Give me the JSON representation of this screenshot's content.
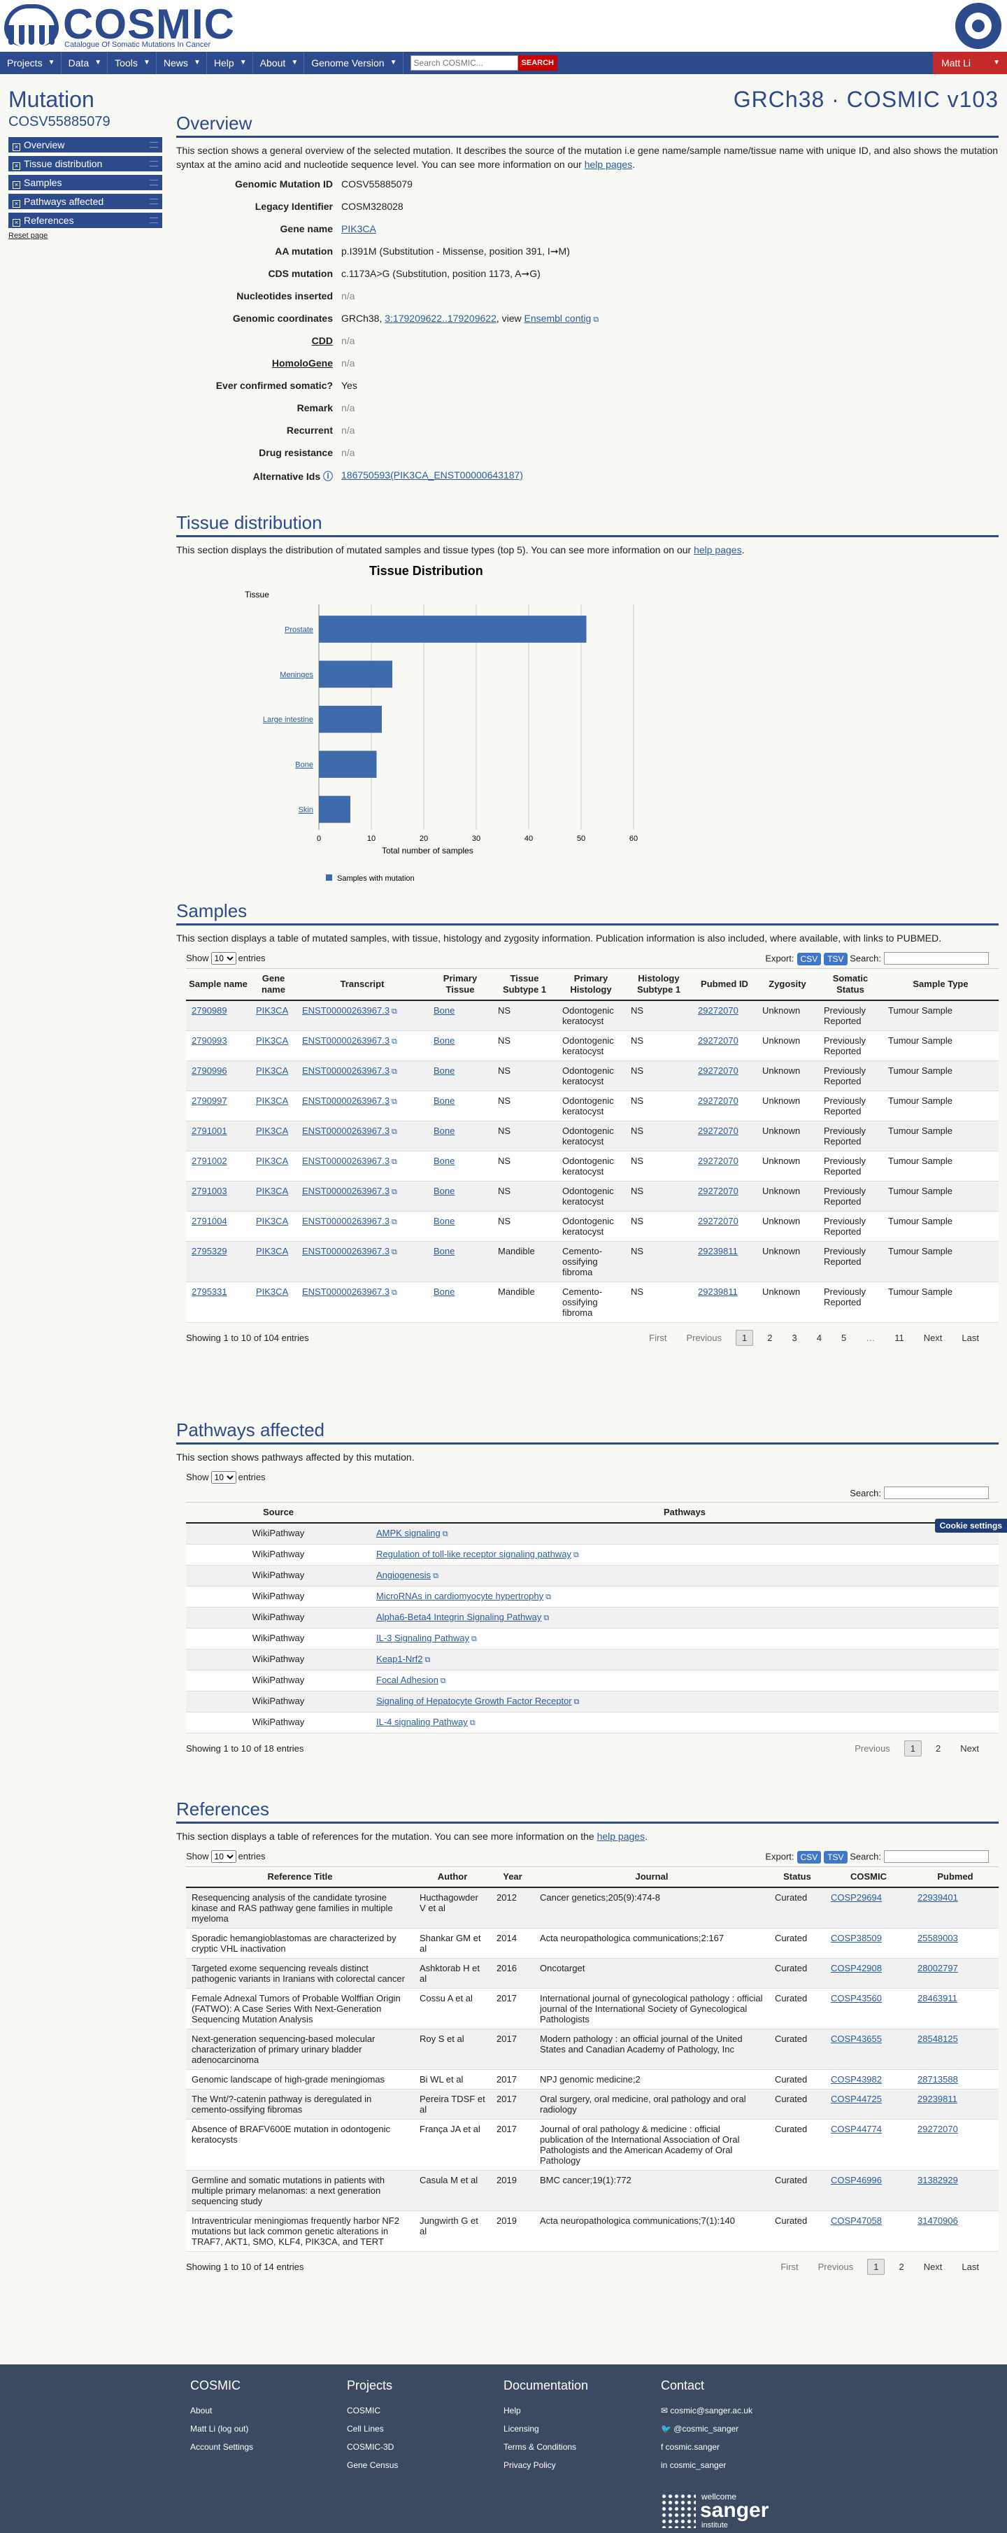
{
  "header": {
    "logo_text": "COSMIC",
    "logo_sub": "Catalogue Of Somatic Mutations In Cancer"
  },
  "nav": {
    "items": [
      "Projects",
      "Data",
      "Tools",
      "News",
      "Help",
      "About",
      "Genome Version"
    ],
    "search_placeholder": "Search COSMIC...",
    "search_button": "SEARCH",
    "user": "Matt Li"
  },
  "left": {
    "heading": "Mutation",
    "id": "COSV55885079",
    "buttons": [
      "Overview",
      "Tissue distribution",
      "Samples",
      "Pathways affected",
      "References"
    ],
    "reset": "Reset page"
  },
  "build_title": "GRCh38 · COSMIC v103",
  "overview": {
    "title": "Overview",
    "intro_prefix": "This section shows a general overview of the selected mutation. It describes the source of the mutation i.e gene name/sample name/tissue name with unique ID, and also shows the mutation syntax at the amino acid and nucleotide sequence level. You can see more information on our ",
    "help_link": "help pages",
    "rows": {
      "genomic_mutation_id_label": "Genomic Mutation ID",
      "genomic_mutation_id": "COSV55885079",
      "legacy_label": "Legacy Identifier",
      "legacy": "COSM328028",
      "gene_label": "Gene name",
      "gene": "PIK3CA",
      "aa_label": "AA mutation",
      "aa": "p.I391M (Substitution - Missense, position 391, I➞M)",
      "cds_label": "CDS mutation",
      "cds": "c.1173A>G (Substitution, position 1173, A➞G)",
      "nucins_label": "Nucleotides inserted",
      "nucins": "n/a",
      "coords_label": "Genomic coordinates",
      "coords_prefix": "GRCh38, ",
      "coords_link": "3:179209622..179209622",
      "coords_mid": ", view ",
      "coords_ensembl": "Ensembl contig",
      "cdd_label": "CDD",
      "cdd": "n/a",
      "homologene_label": "HomoloGene",
      "homologene": "n/a",
      "somatic_label": "Ever confirmed somatic?",
      "somatic": "Yes",
      "remark_label": "Remark",
      "remark": "n/a",
      "recurrent_label": "Recurrent",
      "recurrent": "n/a",
      "drug_label": "Drug resistance",
      "drug": "n/a",
      "altids_label": "Alternative Ids",
      "altids": "186750593(PIK3CA_ENST00000643187)"
    }
  },
  "tissue": {
    "title": "Tissue distribution",
    "intro_prefix": "This section displays the distribution of mutated samples and tissue types (top 5). You can see more information on our ",
    "help_link": "help pages"
  },
  "chart_data": {
    "type": "bar",
    "orientation": "horizontal",
    "title": "Tissue Distribution",
    "ylabel": "Tissue",
    "xlabel": "Total number of samples",
    "categories": [
      "Prostate",
      "Meninges",
      "Large intestine",
      "Bone",
      "Skin"
    ],
    "series": [
      {
        "name": "Samples with mutation",
        "values": [
          51,
          14,
          12,
          11,
          6
        ]
      }
    ],
    "xlim": [
      0,
      60
    ],
    "xticks": [
      0,
      10,
      20,
      30,
      40,
      50,
      60
    ],
    "grid": true,
    "legend": "bottom-left",
    "color": "#3f6aab"
  },
  "samples": {
    "title": "Samples",
    "intro": "This section displays a table of mutated samples, with tissue, histology and zygosity information. Publication information is also included, where available, with links to PUBMED.",
    "show": "Show",
    "entries": "entries",
    "page_size": "10",
    "export": "Export:",
    "csv": "CSV",
    "tsv": "TSV",
    "search": "Search:",
    "columns": [
      "Sample name",
      "Gene name",
      "Transcript",
      "Primary Tissue",
      "Tissue Subtype 1",
      "Primary Histology",
      "Histology Subtype 1",
      "Pubmed ID",
      "Zygosity",
      "Somatic Status",
      "Sample Type"
    ],
    "rows": [
      [
        "2790989",
        "PIK3CA",
        "ENST00000263967.3",
        "Bone",
        "NS",
        "Odontogenic keratocyst",
        "NS",
        "29272070",
        "Unknown",
        "Previously Reported",
        "Tumour Sample"
      ],
      [
        "2790993",
        "PIK3CA",
        "ENST00000263967.3",
        "Bone",
        "NS",
        "Odontogenic keratocyst",
        "NS",
        "29272070",
        "Unknown",
        "Previously Reported",
        "Tumour Sample"
      ],
      [
        "2790996",
        "PIK3CA",
        "ENST00000263967.3",
        "Bone",
        "NS",
        "Odontogenic keratocyst",
        "NS",
        "29272070",
        "Unknown",
        "Previously Reported",
        "Tumour Sample"
      ],
      [
        "2790997",
        "PIK3CA",
        "ENST00000263967.3",
        "Bone",
        "NS",
        "Odontogenic keratocyst",
        "NS",
        "29272070",
        "Unknown",
        "Previously Reported",
        "Tumour Sample"
      ],
      [
        "2791001",
        "PIK3CA",
        "ENST00000263967.3",
        "Bone",
        "NS",
        "Odontogenic keratocyst",
        "NS",
        "29272070",
        "Unknown",
        "Previously Reported",
        "Tumour Sample"
      ],
      [
        "2791002",
        "PIK3CA",
        "ENST00000263967.3",
        "Bone",
        "NS",
        "Odontogenic keratocyst",
        "NS",
        "29272070",
        "Unknown",
        "Previously Reported",
        "Tumour Sample"
      ],
      [
        "2791003",
        "PIK3CA",
        "ENST00000263967.3",
        "Bone",
        "NS",
        "Odontogenic keratocyst",
        "NS",
        "29272070",
        "Unknown",
        "Previously Reported",
        "Tumour Sample"
      ],
      [
        "2791004",
        "PIK3CA",
        "ENST00000263967.3",
        "Bone",
        "NS",
        "Odontogenic keratocyst",
        "NS",
        "29272070",
        "Unknown",
        "Previously Reported",
        "Tumour Sample"
      ],
      [
        "2795329",
        "PIK3CA",
        "ENST00000263967.3",
        "Bone",
        "Mandible",
        "Cemento-ossifying fibroma",
        "NS",
        "29239811",
        "Unknown",
        "Previously Reported",
        "Tumour Sample"
      ],
      [
        "2795331",
        "PIK3CA",
        "ENST00000263967.3",
        "Bone",
        "Mandible",
        "Cemento-ossifying fibroma",
        "NS",
        "29239811",
        "Unknown",
        "Previously Reported",
        "Tumour Sample"
      ]
    ],
    "info": "Showing 1 to 10 of 104 entries",
    "pager": [
      "First",
      "Previous",
      "1",
      "2",
      "3",
      "4",
      "5",
      "…",
      "11",
      "Next",
      "Last"
    ]
  },
  "pathways": {
    "title": "Pathways affected",
    "intro": "This section shows pathways affected by this mutation.",
    "show": "Show",
    "entries": "entries",
    "page_size": "10",
    "search": "Search:",
    "columns": [
      "Source",
      "Pathways"
    ],
    "rows": [
      [
        "WikiPathway",
        "AMPK signaling"
      ],
      [
        "WikiPathway",
        "Regulation of toll-like receptor signaling pathway"
      ],
      [
        "WikiPathway",
        "Angiogenesis"
      ],
      [
        "WikiPathway",
        "MicroRNAs in cardiomyocyte hypertrophy"
      ],
      [
        "WikiPathway",
        "Alpha6-Beta4 Integrin Signaling Pathway"
      ],
      [
        "WikiPathway",
        "IL-3 Signaling Pathway"
      ],
      [
        "WikiPathway",
        "Keap1-Nrf2"
      ],
      [
        "WikiPathway",
        "Focal Adhesion"
      ],
      [
        "WikiPathway",
        "Signaling of Hepatocyte Growth Factor Receptor"
      ],
      [
        "WikiPathway",
        "IL-4 signaling Pathway"
      ]
    ],
    "info": "Showing 1 to 10 of 18 entries",
    "pager": [
      "Previous",
      "1",
      "2",
      "Next"
    ],
    "cookie": "Cookie settings"
  },
  "references": {
    "title": "References",
    "intro_prefix": "This section displays a table of references for the mutation. You can see more information on the ",
    "help_link": "help pages",
    "show": "Show",
    "entries": "entries",
    "page_size": "10",
    "export": "Export:",
    "csv": "CSV",
    "tsv": "TSV",
    "search": "Search:",
    "columns": [
      "Reference Title",
      "Author",
      "Year",
      "Journal",
      "Status",
      "COSMIC",
      "Pubmed"
    ],
    "rows": [
      [
        "Resequencing analysis of the candidate tyrosine kinase and RAS pathway gene families in multiple myeloma",
        "Hucthagowder V et al",
        "2012",
        "Cancer genetics;205(9):474-8",
        "Curated",
        "COSP29694",
        "22939401"
      ],
      [
        "Sporadic hemangioblastomas are characterized by cryptic VHL inactivation",
        "Shankar GM et al",
        "2014",
        "Acta neuropathologica communications;2:167",
        "Curated",
        "COSP38509",
        "25589003"
      ],
      [
        "Targeted exome sequencing reveals distinct pathogenic variants in Iranians with colorectal cancer",
        "Ashktorab H et al",
        "2016",
        "Oncotarget",
        "Curated",
        "COSP42908",
        "28002797"
      ],
      [
        "Female Adnexal Tumors of Probable Wolffian Origin (FATWO): A Case Series With Next-Generation Sequencing Mutation Analysis",
        "Cossu A et al",
        "2017",
        "International journal of gynecological pathology : official journal of the International Society of Gynecological Pathologists",
        "Curated",
        "COSP43560",
        "28463911"
      ],
      [
        "Next-generation sequencing-based molecular characterization of primary urinary bladder adenocarcinoma",
        "Roy S et al",
        "2017",
        "Modern pathology : an official journal of the United States and Canadian Academy of Pathology, Inc",
        "Curated",
        "COSP43655",
        "28548125"
      ],
      [
        "Genomic landscape of high-grade meningiomas",
        "Bi WL et al",
        "2017",
        "NPJ genomic medicine;2",
        "Curated",
        "COSP43982",
        "28713588"
      ],
      [
        "The Wnt/?-catenin pathway is deregulated in cemento-ossifying fibromas",
        "Pereira TDSF et al",
        "2017",
        "Oral surgery, oral medicine, oral pathology and oral radiology",
        "Curated",
        "COSP44725",
        "29239811"
      ],
      [
        "Absence of BRAFV600E mutation in odontogenic keratocysts",
        "França JA et al",
        "2017",
        "Journal of oral pathology & medicine : official publication of the International Association of Oral Pathologists and the American Academy of Oral Pathology",
        "Curated",
        "COSP44774",
        "29272070"
      ],
      [
        "Germline and somatic mutations in patients with multiple primary melanomas: a next generation sequencing study",
        "Casula M et al",
        "2019",
        "BMC cancer;19(1):772",
        "Curated",
        "COSP46996",
        "31382929"
      ],
      [
        "Intraventricular meningiomas frequently harbor NF2 mutations but lack common genetic alterations in TRAF7, AKT1, SMO, KLF4, PIK3CA, and TERT",
        "Jungwirth G et al",
        "2019",
        "Acta neuropathologica communications;7(1):140",
        "Curated",
        "COSP47058",
        "31470906"
      ]
    ],
    "info": "Showing 1 to 10 of 14 entries",
    "pager": [
      "First",
      "Previous",
      "1",
      "2",
      "Next",
      "Last"
    ]
  },
  "footer": {
    "cols": [
      {
        "title": "COSMIC",
        "items": [
          "About",
          "Matt Li (log out)",
          "Account Settings"
        ]
      },
      {
        "title": "Projects",
        "items": [
          "COSMIC",
          "Cell Lines",
          "COSMIC-3D",
          "Gene Census"
        ]
      },
      {
        "title": "Documentation",
        "items": [
          "Help",
          "Licensing",
          "Terms & Conditions",
          "Privacy Policy"
        ]
      },
      {
        "title": "Contact",
        "items": [
          "cosmic@sanger.ac.uk",
          "@cosmic_sanger",
          "cosmic.sanger",
          "cosmic_sanger"
        ]
      }
    ],
    "sanger_top": "wellcome",
    "sanger_main": "sanger",
    "sanger_bottom": "institute"
  }
}
